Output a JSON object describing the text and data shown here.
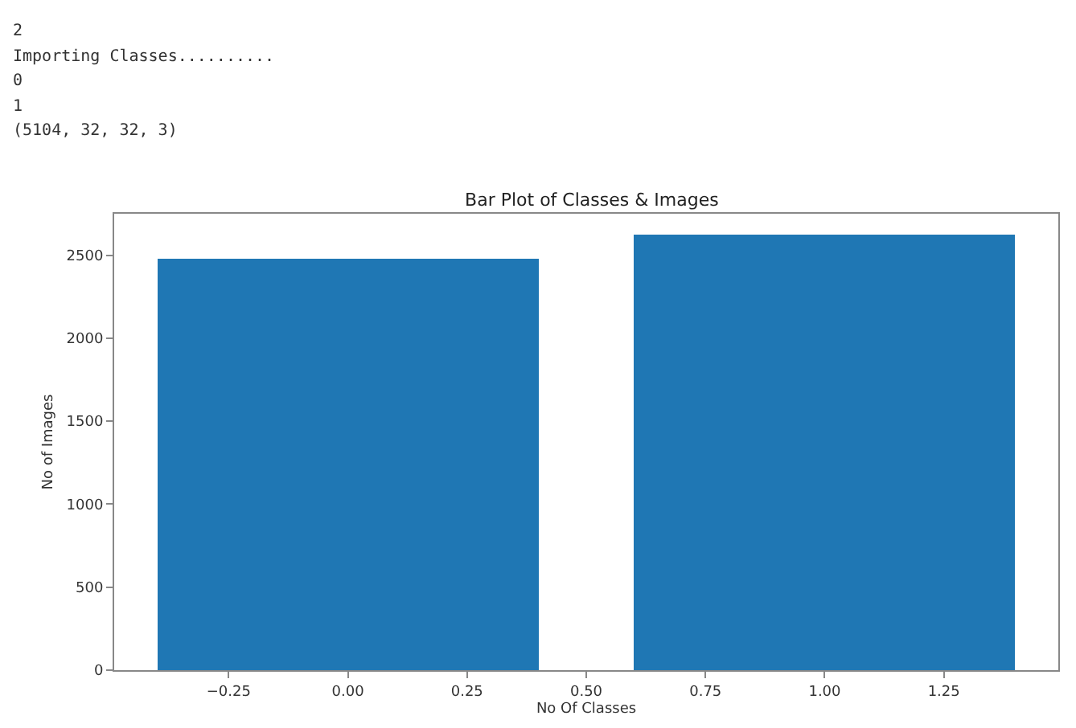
{
  "chart_data": {
    "type": "bar",
    "title": "Bar Plot of Classes & Images",
    "xlabel": "No Of Classes",
    "ylabel": "No of Images",
    "annotations": [
      "2",
      "Importing Classes..........",
      "0",
      "1",
      "(5104, 32, 32, 3)"
    ],
    "x": [
      0,
      1
    ],
    "values": [
      2480,
      2620
    ],
    "color": "#1f77b4",
    "xlim": [
      -0.49,
      1.49
    ],
    "xticks": [
      {
        "value": -0.25,
        "label": "−0.25"
      },
      {
        "value": 0,
        "label": "0.00"
      },
      {
        "value": 0.25,
        "label": "0.25"
      },
      {
        "value": 0.5,
        "label": "0.50"
      },
      {
        "value": 0.75,
        "label": "0.75"
      },
      {
        "value": 1,
        "label": "1.00"
      },
      {
        "value": 1.25,
        "label": "1.25"
      }
    ],
    "ylim": [
      0,
      2750
    ],
    "yticks": [
      0,
      500,
      1000,
      1500,
      2000,
      2500
    ],
    "grid": false
  }
}
